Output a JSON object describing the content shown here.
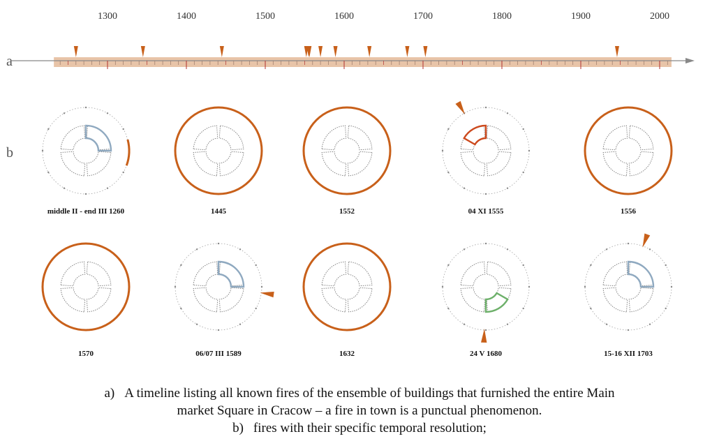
{
  "row_labels": {
    "a": "a",
    "b": "b"
  },
  "timeline": {
    "tick_years": [
      1300,
      1400,
      1500,
      1600,
      1700,
      1800,
      1900,
      2000
    ],
    "range": [
      1195,
      2045
    ],
    "band_range": [
      1232,
      2015
    ],
    "fire_years": [
      1260,
      1345,
      1445,
      1552,
      1555,
      1556,
      1570,
      1589,
      1632,
      1680,
      1703,
      1946
    ],
    "band_color": "#e8c4a8",
    "marker_color": "#c8601a",
    "axis_color": "#888888"
  },
  "panels": [
    {
      "label": "middle II - end III 1260",
      "type": "partial",
      "sector": "blue",
      "arc": [
        75,
        110
      ]
    },
    {
      "label": "1445",
      "type": "full"
    },
    {
      "label": "1552",
      "type": "full"
    },
    {
      "label": "04 XI 1555",
      "type": "point",
      "sector": "red",
      "marker_angle": -30
    },
    {
      "label": "1556",
      "type": "full"
    },
    {
      "label": "1570",
      "type": "full"
    },
    {
      "label": "06/07 III 1589",
      "type": "point",
      "sector": "blue",
      "marker_angle": 98
    },
    {
      "label": "1632",
      "type": "full"
    },
    {
      "label": "24 V 1680",
      "type": "point",
      "sector": "green",
      "marker_angle": 182
    },
    {
      "label": "15-16 XII 1703",
      "type": "point",
      "sector": "blue",
      "marker_angle": 20
    }
  ],
  "colors": {
    "fire": "#c8601a",
    "blue": "#8fa9c0",
    "red": "#cc4a1e",
    "green": "#6db06a",
    "grey": "#888888"
  },
  "caption": {
    "a_num": "a)",
    "a_text_1": "A timeline listing all known fires of the ensemble of buildings that furnished the entire Main",
    "a_text_2": "market Square in Cracow – a fire in town is a punctual phenomenon.",
    "b_num": "b)",
    "b_text": "fires with their specific temporal resolution;"
  }
}
